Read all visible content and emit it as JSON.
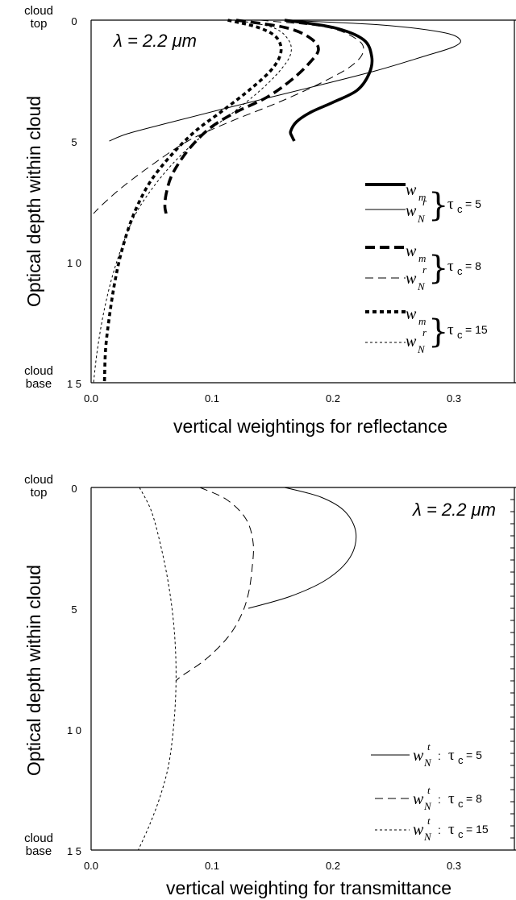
{
  "chart_data": [
    {
      "type": "line",
      "lambda_label": "λ = 2.2 μm",
      "xlabel": "vertical weightings for reflectance",
      "ylabel": "Optical depth within cloud",
      "top_label": [
        "cloud",
        "top"
      ],
      "base_label": [
        "cloud",
        "base"
      ],
      "xlim": [
        0,
        0.35
      ],
      "ylim": [
        0,
        15
      ],
      "y_inverted": true,
      "x_ticks": [
        "0.0",
        "0.1",
        "0.2",
        "0.3"
      ],
      "y_ticks": [
        "0",
        "5",
        "1 0",
        "1 5"
      ],
      "legend_placement": "right",
      "legend_groups": [
        {
          "tau": "τ",
          "tau_sub": "c",
          "tau_value": "= 5",
          "entries": [
            {
              "symbol": "w",
              "sub": "m",
              "sup": ""
            },
            {
              "symbol": "w",
              "sub": "N",
              "sup": "r"
            }
          ]
        },
        {
          "tau": "τ",
          "tau_sub": "c",
          "tau_value": "= 8",
          "entries": [
            {
              "symbol": "w",
              "sub": "m",
              "sup": ""
            },
            {
              "symbol": "w",
              "sub": "N",
              "sup": "r"
            }
          ]
        },
        {
          "tau": "τ",
          "tau_sub": "c",
          "tau_value": "= 15",
          "entries": [
            {
              "symbol": "w",
              "sub": "m",
              "sup": ""
            },
            {
              "symbol": "w",
              "sub": "N",
              "sup": "r"
            }
          ]
        }
      ],
      "series": [
        {
          "style": "thick-solid",
          "points": [
            [
              0.16,
              0
            ],
            [
              0.2,
              0.3
            ],
            [
              0.225,
              0.8
            ],
            [
              0.232,
              1.5
            ],
            [
              0.23,
              2.2
            ],
            [
              0.22,
              2.9
            ],
            [
              0.2,
              3.4
            ],
            [
              0.182,
              3.8
            ],
            [
              0.17,
              4.2
            ],
            [
              0.165,
              4.6
            ],
            [
              0.166,
              4.8
            ],
            [
              0.168,
              5.0
            ]
          ]
        },
        {
          "style": "thin-solid",
          "points": [
            [
              0.16,
              0
            ],
            [
              0.24,
              0.2
            ],
            [
              0.29,
              0.5
            ],
            [
              0.305,
              0.8
            ],
            [
              0.3,
              1.1
            ],
            [
              0.275,
              1.5
            ],
            [
              0.235,
              2.1
            ],
            [
              0.18,
              2.8
            ],
            [
              0.115,
              3.6
            ],
            [
              0.06,
              4.3
            ],
            [
              0.03,
              4.7
            ],
            [
              0.015,
              5.0
            ]
          ]
        },
        {
          "style": "thick-dashed",
          "points": [
            [
              0.12,
              0
            ],
            [
              0.16,
              0.3
            ],
            [
              0.18,
              0.7
            ],
            [
              0.188,
              1.2
            ],
            [
              0.18,
              1.8
            ],
            [
              0.165,
              2.5
            ],
            [
              0.145,
              3.2
            ],
            [
              0.12,
              3.8
            ],
            [
              0.1,
              4.4
            ],
            [
              0.085,
              5.1
            ],
            [
              0.074,
              5.8
            ],
            [
              0.066,
              6.5
            ],
            [
              0.062,
              7.2
            ],
            [
              0.061,
              7.7
            ],
            [
              0.062,
              8.0
            ]
          ]
        },
        {
          "style": "thin-dashed",
          "points": [
            [
              0.14,
              0
            ],
            [
              0.195,
              0.3
            ],
            [
              0.22,
              0.8
            ],
            [
              0.225,
              1.3
            ],
            [
              0.215,
              1.9
            ],
            [
              0.19,
              2.6
            ],
            [
              0.155,
              3.4
            ],
            [
              0.115,
              4.2
            ],
            [
              0.08,
              5.0
            ],
            [
              0.05,
              6.0
            ],
            [
              0.026,
              6.9
            ],
            [
              0.01,
              7.6
            ],
            [
              0.002,
              8.0
            ]
          ]
        },
        {
          "style": "thick-dotted",
          "points": [
            [
              0.113,
              0
            ],
            [
              0.138,
              0.3
            ],
            [
              0.153,
              0.7
            ],
            [
              0.157,
              1.3
            ],
            [
              0.15,
              2.0
            ],
            [
              0.133,
              2.8
            ],
            [
              0.11,
              3.7
            ],
            [
              0.086,
              4.6
            ],
            [
              0.066,
              5.6
            ],
            [
              0.05,
              6.6
            ],
            [
              0.039,
              7.6
            ],
            [
              0.031,
              8.6
            ],
            [
              0.024,
              9.8
            ],
            [
              0.019,
              11.0
            ],
            [
              0.015,
              12.3
            ],
            [
              0.012,
              13.6
            ],
            [
              0.011,
              15.0
            ]
          ]
        },
        {
          "style": "thin-dotted",
          "points": [
            [
              0.12,
              0
            ],
            [
              0.15,
              0.3
            ],
            [
              0.163,
              0.8
            ],
            [
              0.165,
              1.4
            ],
            [
              0.156,
              2.1
            ],
            [
              0.14,
              2.9
            ],
            [
              0.118,
              3.8
            ],
            [
              0.094,
              4.7
            ],
            [
              0.072,
              5.7
            ],
            [
              0.053,
              6.8
            ],
            [
              0.037,
              8.0
            ],
            [
              0.026,
              9.3
            ],
            [
              0.017,
              10.7
            ],
            [
              0.01,
              12.2
            ],
            [
              0.005,
              13.7
            ],
            [
              0.002,
              15.0
            ]
          ]
        }
      ]
    },
    {
      "type": "line",
      "lambda_label": "λ = 2.2 μm",
      "xlabel": "vertical weighting for transmittance",
      "ylabel": "Optical depth within cloud",
      "top_label": [
        "cloud",
        "top"
      ],
      "base_label": [
        "cloud",
        "base"
      ],
      "xlim": [
        0,
        0.35
      ],
      "ylim": [
        0,
        15
      ],
      "y_inverted": true,
      "x_ticks": [
        "0.0",
        "0.1",
        "0.2",
        "0.3"
      ],
      "y_ticks": [
        "0",
        "5",
        "1 0",
        "1 5"
      ],
      "legend_placement": "bottom-right",
      "legend_entries": [
        {
          "symbol": "w",
          "sub": "N",
          "sup": "t",
          "tau": "τ",
          "tau_sub": "c",
          "tau_value": "= 5"
        },
        {
          "symbol": "w",
          "sub": "N",
          "sup": "t",
          "tau": "τ",
          "tau_sub": "c",
          "tau_value": "= 8"
        },
        {
          "symbol": "w",
          "sub": "N",
          "sup": "t",
          "tau": "τ",
          "tau_sub": "c",
          "tau_value": "= 15"
        }
      ],
      "series": [
        {
          "style": "thin-solid",
          "points": [
            [
              0.16,
              0
            ],
            [
              0.19,
              0.4
            ],
            [
              0.21,
              1.0
            ],
            [
              0.219,
              1.9
            ],
            [
              0.214,
              2.9
            ],
            [
              0.195,
              3.8
            ],
            [
              0.165,
              4.5
            ],
            [
              0.13,
              5.0
            ]
          ]
        },
        {
          "style": "thin-dashed",
          "points": [
            [
              0.09,
              0
            ],
            [
              0.112,
              0.5
            ],
            [
              0.128,
              1.3
            ],
            [
              0.134,
              2.3
            ],
            [
              0.133,
              3.4
            ],
            [
              0.13,
              4.4
            ],
            [
              0.124,
              5.3
            ],
            [
              0.113,
              6.2
            ],
            [
              0.095,
              7.1
            ],
            [
              0.075,
              7.8
            ],
            [
              0.07,
              8.0
            ]
          ]
        },
        {
          "style": "thin-dotted",
          "points": [
            [
              0.04,
              0
            ],
            [
              0.05,
              1.0
            ],
            [
              0.058,
              2.5
            ],
            [
              0.064,
              4.0
            ],
            [
              0.068,
              5.5
            ],
            [
              0.07,
              7.0
            ],
            [
              0.07,
              8.5
            ],
            [
              0.068,
              10.0
            ],
            [
              0.064,
              11.5
            ],
            [
              0.057,
              12.8
            ],
            [
              0.048,
              14.0
            ],
            [
              0.039,
              15.0
            ]
          ]
        }
      ]
    }
  ]
}
